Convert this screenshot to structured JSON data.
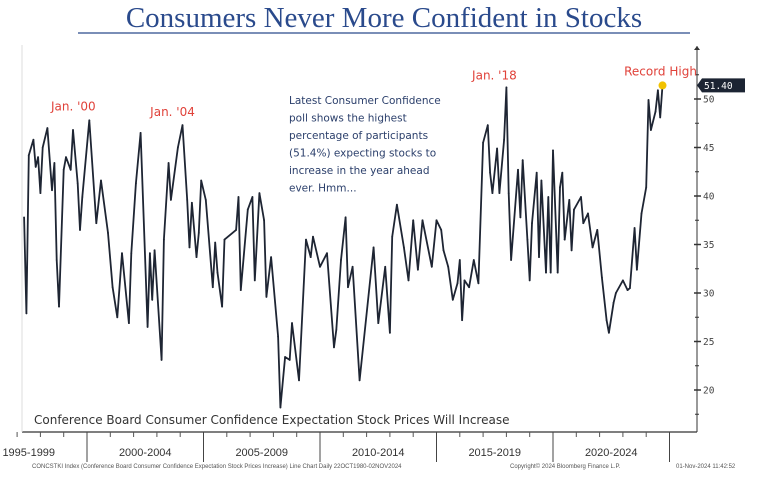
{
  "chart_data": {
    "type": "line",
    "title": "Consumers Never More Confident in Stocks",
    "legend": "Conference Board Consumer Confidence Expectation Stock Prices Will Increase",
    "ylim": [
      16,
      54
    ],
    "xlim": [
      1995,
      2025.6
    ],
    "y_ticks": [
      20,
      25,
      30,
      35,
      40,
      45,
      50
    ],
    "x_period_labels": [
      "1995-1999",
      "2000-2004",
      "2005-2009",
      "2010-2014",
      "2015-2019",
      "2020-2024"
    ],
    "grid": false,
    "line_color": "#1e2533",
    "last_value_label": "51.40",
    "annotation_text": [
      "Latest Consumer Confidence",
      "poll shows the highest",
      "percentage of participants",
      "(51.4%) expecting stocks to",
      "increase in the year ahead",
      "ever. Hmm..."
    ],
    "callouts": [
      {
        "text": "Jan. '00",
        "x": 2000.1,
        "y": 47.8
      },
      {
        "text": "Jan. '04",
        "x": 2004.1,
        "y": 47.3
      },
      {
        "text": "Jan. '18",
        "x": 2018.0,
        "y": 51.2
      },
      {
        "text": "Record High",
        "x": 2024.7,
        "y": 51.4
      }
    ],
    "highlight_color": "#f2c200",
    "callout_color": "#e0423a",
    "x": [
      1997.3,
      1997.4,
      1997.5,
      1997.7,
      1997.8,
      1997.9,
      1998.0,
      1998.1,
      1998.3,
      1998.5,
      1998.6,
      1998.7,
      1998.8,
      1999.0,
      1999.1,
      1999.3,
      1999.4,
      1999.6,
      1999.7,
      1999.8,
      2000.1,
      2000.4,
      2000.6,
      2000.9,
      2001.1,
      2001.3,
      2001.5,
      2001.8,
      2001.9,
      2002.1,
      2002.3,
      2002.6,
      2002.7,
      2002.8,
      2002.9,
      2003.2,
      2003.3,
      2003.5,
      2003.6,
      2003.9,
      2004.1,
      2004.3,
      2004.4,
      2004.5,
      2004.7,
      2004.8,
      2004.9,
      2005.1,
      2005.4,
      2005.5,
      2005.6,
      2005.8,
      2005.9,
      2006.4,
      2006.5,
      2006.6,
      2006.9,
      2007.1,
      2007.2,
      2007.4,
      2007.6,
      2007.7,
      2007.9,
      2008.2,
      2008.3,
      2008.5,
      2008.7,
      2008.8,
      2009.1,
      2009.4,
      2009.6,
      2009.7,
      2010.0,
      2010.3,
      2010.6,
      2010.7,
      2010.9,
      2011.1,
      2011.2,
      2011.4,
      2011.7,
      2012.3,
      2012.5,
      2012.8,
      2013.0,
      2013.1,
      2013.3,
      2013.6,
      2013.8,
      2014.0,
      2014.2,
      2014.4,
      2014.8,
      2015.0,
      2015.2,
      2015.3,
      2015.5,
      2015.7,
      2015.9,
      2016.0,
      2016.1,
      2016.2,
      2016.4,
      2016.6,
      2016.8,
      2017.0,
      2017.2,
      2017.3,
      2017.4,
      2017.6,
      2017.7,
      2017.9,
      2018.0,
      2018.1,
      2018.2,
      2018.5,
      2018.6,
      2018.7,
      2018.9,
      2019.0,
      2019.1,
      2019.3,
      2019.4,
      2019.5,
      2019.7,
      2019.8,
      2019.9,
      2020.0,
      2020.2,
      2020.3,
      2020.4,
      2020.5,
      2020.7,
      2020.8,
      2020.9,
      2021.2,
      2021.3,
      2021.5,
      2021.7,
      2021.9,
      2022.1,
      2022.3,
      2022.4,
      2022.6,
      2022.7,
      2023.0,
      2023.2,
      2023.3,
      2023.5,
      2023.6,
      2023.8,
      2024.0,
      2024.1,
      2024.2,
      2024.4,
      2024.5,
      2024.6,
      2024.7
    ],
    "y": [
      37.8,
      27.9,
      44.2,
      45.8,
      43.0,
      44.0,
      40.3,
      45.0,
      47.0,
      40.6,
      43.4,
      33.4,
      28.6,
      42.7,
      44.0,
      42.7,
      46.8,
      41.3,
      36.5,
      39.9,
      47.8,
      37.2,
      41.6,
      36.2,
      30.6,
      27.5,
      34.1,
      26.9,
      34.1,
      41.3,
      46.5,
      26.5,
      34.1,
      29.3,
      34.4,
      23.1,
      35.5,
      43.4,
      39.6,
      45.0,
      47.3,
      39.6,
      34.7,
      39.3,
      33.7,
      36.2,
      41.6,
      39.6,
      30.6,
      35.2,
      32.1,
      28.6,
      35.5,
      36.5,
      39.9,
      30.3,
      38.6,
      39.9,
      31.3,
      40.3,
      37.5,
      29.6,
      33.7,
      25.5,
      18.2,
      23.4,
      23.1,
      26.9,
      21.0,
      35.5,
      33.7,
      35.8,
      32.7,
      34.1,
      24.4,
      26.2,
      33.4,
      37.8,
      30.6,
      32.7,
      21.0,
      34.7,
      26.9,
      32.7,
      25.9,
      35.8,
      39.1,
      34.7,
      31.3,
      37.5,
      32.4,
      37.5,
      32.7,
      37.5,
      36.5,
      34.4,
      32.7,
      29.3,
      31.0,
      33.4,
      27.2,
      31.3,
      30.6,
      33.4,
      31.0,
      45.5,
      47.3,
      42.4,
      40.3,
      44.9,
      40.3,
      45.8,
      51.2,
      40.3,
      33.4,
      42.7,
      37.8,
      43.7,
      35.5,
      31.3,
      37.2,
      42.4,
      33.7,
      41.6,
      32.1,
      39.9,
      32.1,
      44.7,
      32.1,
      40.9,
      42.4,
      35.5,
      39.6,
      34.4,
      38.6,
      39.9,
      37.2,
      38.2,
      34.7,
      36.5,
      31.6,
      27.2,
      25.9,
      29.0,
      30.0,
      31.3,
      30.3,
      30.5,
      36.7,
      32.4,
      38.2,
      40.9,
      49.9,
      46.8,
      48.7,
      50.9,
      48.1,
      51.4
    ]
  },
  "footer": {
    "left": "CONCSTKI Index (Conference Board Consumer Confidence Expectation Stock Prices Increase) Line Chart  Daily 22OCT1980-02NOV2024",
    "middle": "Copyright© 2024 Bloomberg Finance L.P.",
    "right": "01-Nov-2024 11:42:52"
  }
}
